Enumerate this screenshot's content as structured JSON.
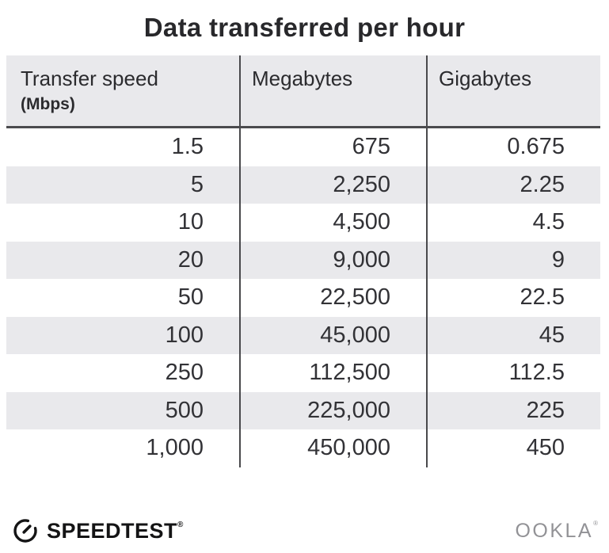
{
  "title": "Data transferred per hour",
  "table": {
    "columns": [
      {
        "label": "Transfer speed",
        "sublabel": "(Mbps)"
      },
      {
        "label": "Megabytes"
      },
      {
        "label": "Gigabytes"
      }
    ],
    "rows": [
      [
        "1.5",
        "675",
        "0.675"
      ],
      [
        "5",
        "2,250",
        "2.25"
      ],
      [
        "10",
        "4,500",
        "4.5"
      ],
      [
        "20",
        "9,000",
        "9"
      ],
      [
        "50",
        "22,500",
        "22.5"
      ],
      [
        "100",
        "45,000",
        "45"
      ],
      [
        "250",
        "112,500",
        "112.5"
      ],
      [
        "500",
        "225,000",
        "225"
      ],
      [
        "1,000",
        "450,000",
        "450"
      ]
    ]
  },
  "footer": {
    "brand": "SPEEDTEST",
    "brand_trademark": "®",
    "company": "OOKLA",
    "company_trademark": "®",
    "gauge_icon": "speedtest-gauge-icon"
  },
  "colors": {
    "header_bg": "#e9e9ec",
    "stripe_bg": "#e9e9ec",
    "divider": "#49494c",
    "header_underline": "#4b4b4e",
    "title_text": "#28282b",
    "cell_text": "#323236",
    "ookla_gray": "#929296",
    "brand_black": "#141415"
  },
  "chart_data": {
    "type": "table",
    "title": "Data transferred per hour",
    "columns": [
      "Transfer speed (Mbps)",
      "Megabytes",
      "Gigabytes"
    ],
    "rows": [
      [
        1.5,
        675,
        0.675
      ],
      [
        5,
        2250,
        2.25
      ],
      [
        10,
        4500,
        4.5
      ],
      [
        20,
        9000,
        9
      ],
      [
        50,
        22500,
        22.5
      ],
      [
        100,
        45000,
        45
      ],
      [
        250,
        112500,
        112.5
      ],
      [
        500,
        225000,
        225
      ],
      [
        1000,
        450000,
        450
      ]
    ],
    "layout": {
      "striped_rows": "even",
      "value_alignment": "right",
      "header_alignment": "left"
    }
  }
}
